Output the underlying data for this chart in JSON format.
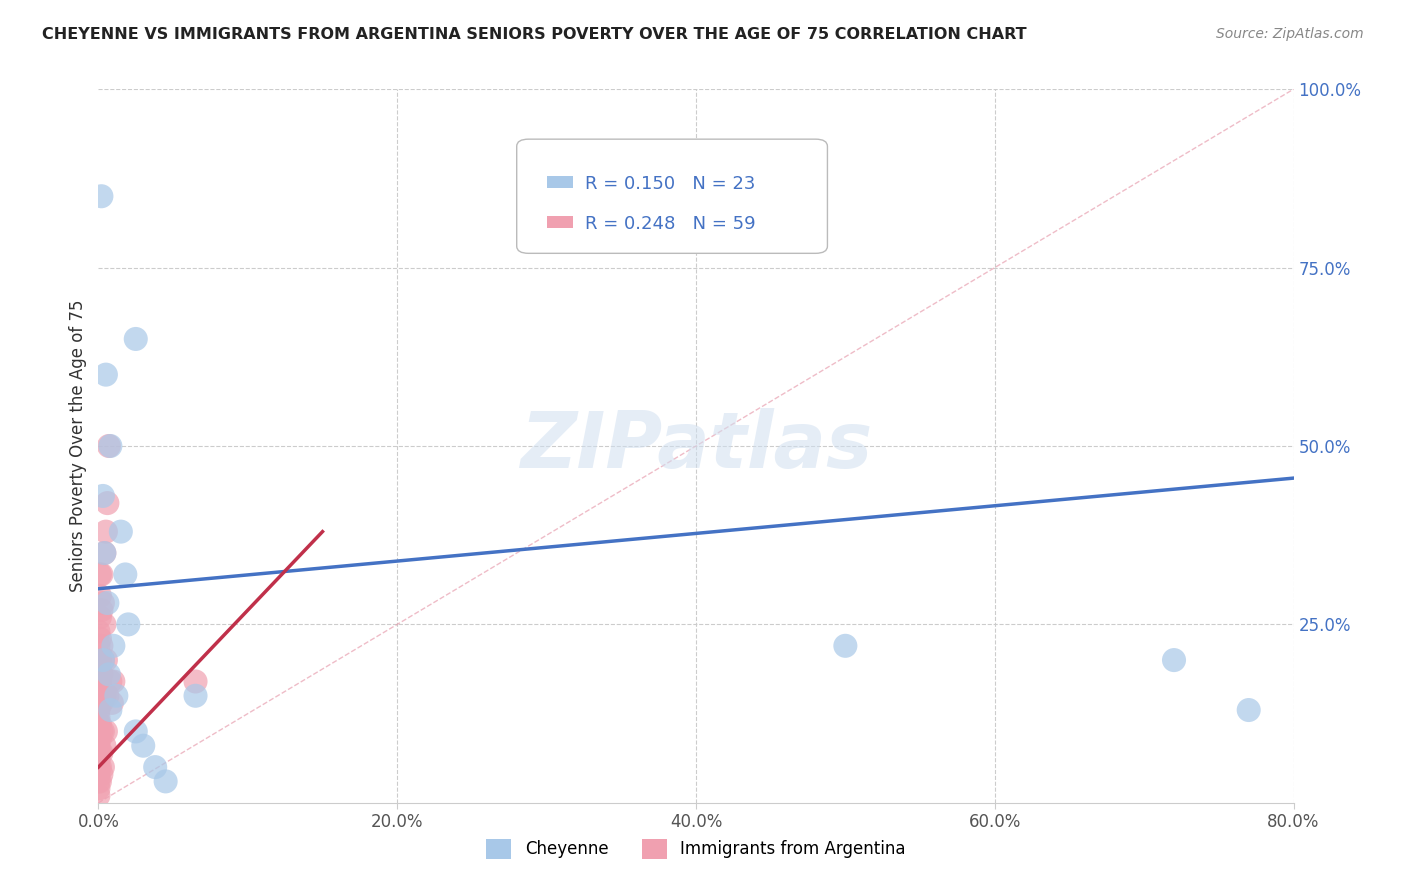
{
  "title": "CHEYENNE VS IMMIGRANTS FROM ARGENTINA SENIORS POVERTY OVER THE AGE OF 75 CORRELATION CHART",
  "source": "Source: ZipAtlas.com",
  "ylabel": "Seniors Poverty Over the Age of 75",
  "watermark": "ZIPatlas",
  "cheyenne_r": 0.15,
  "cheyenne_n": 23,
  "argentina_r": 0.248,
  "argentina_n": 59,
  "xlim": [
    0.0,
    0.8
  ],
  "ylim": [
    0.0,
    1.0
  ],
  "xticks": [
    0.0,
    0.2,
    0.4,
    0.6,
    0.8
  ],
  "xtick_labels": [
    "0.0%",
    "20.0%",
    "40.0%",
    "60.0%",
    "80.0%"
  ],
  "yticks": [
    0.0,
    0.25,
    0.5,
    0.75,
    1.0
  ],
  "ytick_labels": [
    "",
    "25.0%",
    "50.0%",
    "75.0%",
    "100.0%"
  ],
  "cheyenne_color": "#a8c8e8",
  "argentina_color": "#f0a0b0",
  "trendline_cheyenne": "#4472c4",
  "trendline_argentina": "#c0304a",
  "cheyenne_points": [
    [
      0.002,
      0.85
    ],
    [
      0.025,
      0.65
    ],
    [
      0.005,
      0.6
    ],
    [
      0.008,
      0.5
    ],
    [
      0.003,
      0.43
    ],
    [
      0.015,
      0.38
    ],
    [
      0.004,
      0.35
    ],
    [
      0.018,
      0.32
    ],
    [
      0.006,
      0.28
    ],
    [
      0.02,
      0.25
    ],
    [
      0.01,
      0.22
    ],
    [
      0.003,
      0.2
    ],
    [
      0.007,
      0.18
    ],
    [
      0.012,
      0.15
    ],
    [
      0.008,
      0.13
    ],
    [
      0.025,
      0.1
    ],
    [
      0.03,
      0.08
    ],
    [
      0.038,
      0.05
    ],
    [
      0.045,
      0.03
    ],
    [
      0.065,
      0.15
    ],
    [
      0.5,
      0.22
    ],
    [
      0.72,
      0.2
    ],
    [
      0.77,
      0.13
    ]
  ],
  "argentina_points": [
    [
      0.0,
      0.01
    ],
    [
      0.0,
      0.02
    ],
    [
      0.0,
      0.03
    ],
    [
      0.0,
      0.04
    ],
    [
      0.0,
      0.05
    ],
    [
      0.0,
      0.06
    ],
    [
      0.0,
      0.07
    ],
    [
      0.0,
      0.08
    ],
    [
      0.0,
      0.09
    ],
    [
      0.0,
      0.1
    ],
    [
      0.0,
      0.11
    ],
    [
      0.0,
      0.12
    ],
    [
      0.0,
      0.13
    ],
    [
      0.0,
      0.14
    ],
    [
      0.0,
      0.15
    ],
    [
      0.0,
      0.16
    ],
    [
      0.0,
      0.18
    ],
    [
      0.0,
      0.2
    ],
    [
      0.0,
      0.22
    ],
    [
      0.0,
      0.24
    ],
    [
      0.001,
      0.03
    ],
    [
      0.001,
      0.05
    ],
    [
      0.001,
      0.07
    ],
    [
      0.001,
      0.09
    ],
    [
      0.001,
      0.11
    ],
    [
      0.001,
      0.14
    ],
    [
      0.001,
      0.17
    ],
    [
      0.001,
      0.2
    ],
    [
      0.001,
      0.23
    ],
    [
      0.001,
      0.26
    ],
    [
      0.001,
      0.29
    ],
    [
      0.001,
      0.32
    ],
    [
      0.002,
      0.04
    ],
    [
      0.002,
      0.07
    ],
    [
      0.002,
      0.1
    ],
    [
      0.002,
      0.14
    ],
    [
      0.002,
      0.18
    ],
    [
      0.002,
      0.22
    ],
    [
      0.002,
      0.27
    ],
    [
      0.002,
      0.32
    ],
    [
      0.003,
      0.05
    ],
    [
      0.003,
      0.1
    ],
    [
      0.003,
      0.15
    ],
    [
      0.003,
      0.2
    ],
    [
      0.003,
      0.28
    ],
    [
      0.004,
      0.08
    ],
    [
      0.004,
      0.15
    ],
    [
      0.004,
      0.25
    ],
    [
      0.004,
      0.35
    ],
    [
      0.005,
      0.1
    ],
    [
      0.005,
      0.2
    ],
    [
      0.005,
      0.38
    ],
    [
      0.006,
      0.42
    ],
    [
      0.006,
      0.15
    ],
    [
      0.007,
      0.5
    ],
    [
      0.008,
      0.17
    ],
    [
      0.009,
      0.14
    ],
    [
      0.01,
      0.17
    ],
    [
      0.065,
      0.17
    ]
  ],
  "grid_color": "#cccccc",
  "background_color": "#ffffff"
}
